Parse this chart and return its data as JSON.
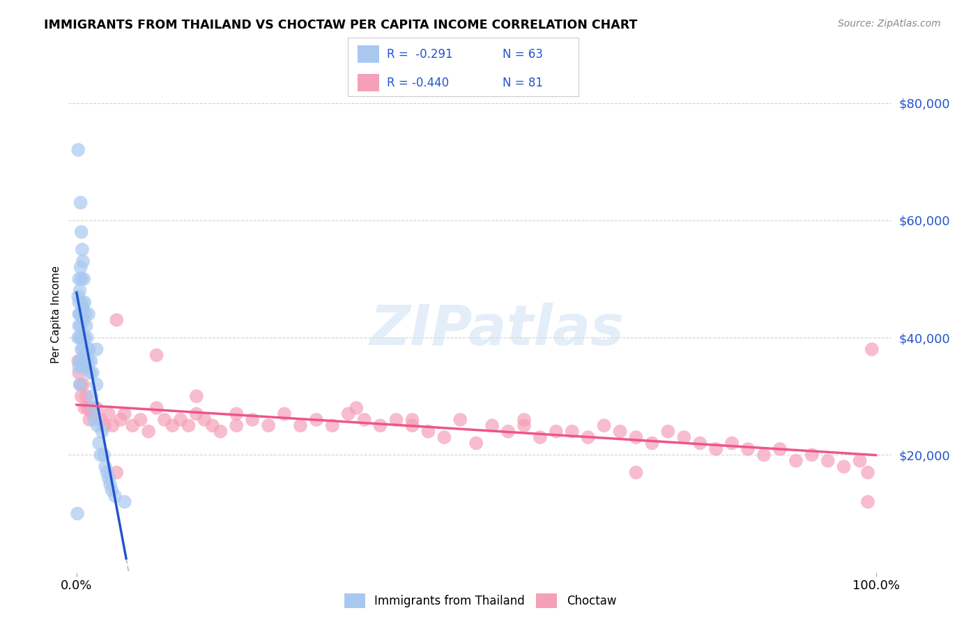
{
  "title": "IMMIGRANTS FROM THAILAND VS CHOCTAW PER CAPITA INCOME CORRELATION CHART",
  "source": "Source: ZipAtlas.com",
  "ylabel": "Per Capita Income",
  "xlim": [
    -0.01,
    1.02
  ],
  "ylim": [
    0,
    88000
  ],
  "yticks": [
    20000,
    40000,
    60000,
    80000
  ],
  "ytick_labels": [
    "$20,000",
    "$40,000",
    "$60,000",
    "$80,000"
  ],
  "xticks": [
    0.0,
    1.0
  ],
  "xtick_labels": [
    "0.0%",
    "100.0%"
  ],
  "background_color": "#ffffff",
  "grid_color": "#c8c8c8",
  "thailand_color": "#a8c8f0",
  "choctaw_color": "#f4a0b8",
  "thailand_line_color": "#2255cc",
  "choctaw_line_color": "#ee5588",
  "dashed_line_color": "#b0c8e0",
  "label_color": "#2255cc",
  "legend_label1": "Immigrants from Thailand",
  "legend_label2": "Choctaw",
  "thailand_x": [
    0.001,
    0.002,
    0.002,
    0.002,
    0.003,
    0.003,
    0.003,
    0.003,
    0.003,
    0.004,
    0.004,
    0.004,
    0.004,
    0.004,
    0.005,
    0.005,
    0.005,
    0.005,
    0.006,
    0.006,
    0.006,
    0.006,
    0.007,
    0.007,
    0.007,
    0.007,
    0.008,
    0.008,
    0.008,
    0.009,
    0.009,
    0.009,
    0.01,
    0.01,
    0.011,
    0.011,
    0.012,
    0.012,
    0.013,
    0.014,
    0.015,
    0.015,
    0.016,
    0.017,
    0.018,
    0.019,
    0.02,
    0.021,
    0.022,
    0.025,
    0.025,
    0.026,
    0.028,
    0.03,
    0.032,
    0.034,
    0.036,
    0.038,
    0.04,
    0.042,
    0.044,
    0.048,
    0.06
  ],
  "thailand_y": [
    10000,
    72000,
    47000,
    40000,
    50000,
    46000,
    44000,
    42000,
    35000,
    48000,
    44000,
    40000,
    36000,
    32000,
    63000,
    52000,
    42000,
    36000,
    58000,
    50000,
    44000,
    38000,
    55000,
    46000,
    40000,
    35000,
    53000,
    45000,
    38000,
    50000,
    43000,
    36000,
    46000,
    40000,
    44000,
    37000,
    42000,
    35000,
    40000,
    38000,
    44000,
    36000,
    38000,
    34000,
    36000,
    30000,
    34000,
    28000,
    26000,
    38000,
    32000,
    25000,
    22000,
    20000,
    24000,
    20000,
    18000,
    17000,
    16000,
    15000,
    14000,
    13000,
    12000
  ],
  "choctaw_x": [
    0.002,
    0.003,
    0.005,
    0.006,
    0.008,
    0.01,
    0.012,
    0.014,
    0.016,
    0.018,
    0.02,
    0.025,
    0.03,
    0.035,
    0.04,
    0.045,
    0.05,
    0.055,
    0.06,
    0.07,
    0.08,
    0.09,
    0.1,
    0.11,
    0.12,
    0.13,
    0.14,
    0.15,
    0.16,
    0.17,
    0.18,
    0.2,
    0.22,
    0.24,
    0.26,
    0.28,
    0.3,
    0.32,
    0.34,
    0.36,
    0.38,
    0.4,
    0.42,
    0.44,
    0.46,
    0.48,
    0.5,
    0.52,
    0.54,
    0.56,
    0.58,
    0.6,
    0.62,
    0.64,
    0.66,
    0.68,
    0.7,
    0.72,
    0.74,
    0.76,
    0.78,
    0.8,
    0.82,
    0.84,
    0.86,
    0.88,
    0.9,
    0.92,
    0.94,
    0.96,
    0.98,
    0.99,
    0.995,
    0.05,
    0.1,
    0.15,
    0.2,
    0.35,
    0.42,
    0.56,
    0.7,
    0.99
  ],
  "choctaw_y": [
    36000,
    34000,
    32000,
    30000,
    32000,
    28000,
    30000,
    28000,
    26000,
    28000,
    27000,
    28000,
    26000,
    25000,
    27000,
    25000,
    43000,
    26000,
    27000,
    25000,
    26000,
    24000,
    28000,
    26000,
    25000,
    26000,
    25000,
    27000,
    26000,
    25000,
    24000,
    25000,
    26000,
    25000,
    27000,
    25000,
    26000,
    25000,
    27000,
    26000,
    25000,
    26000,
    25000,
    24000,
    23000,
    26000,
    22000,
    25000,
    24000,
    26000,
    23000,
    24000,
    24000,
    23000,
    25000,
    24000,
    23000,
    22000,
    24000,
    23000,
    22000,
    21000,
    22000,
    21000,
    20000,
    21000,
    19000,
    20000,
    19000,
    18000,
    19000,
    17000,
    38000,
    17000,
    37000,
    30000,
    27000,
    28000,
    26000,
    25000,
    17000,
    12000
  ]
}
